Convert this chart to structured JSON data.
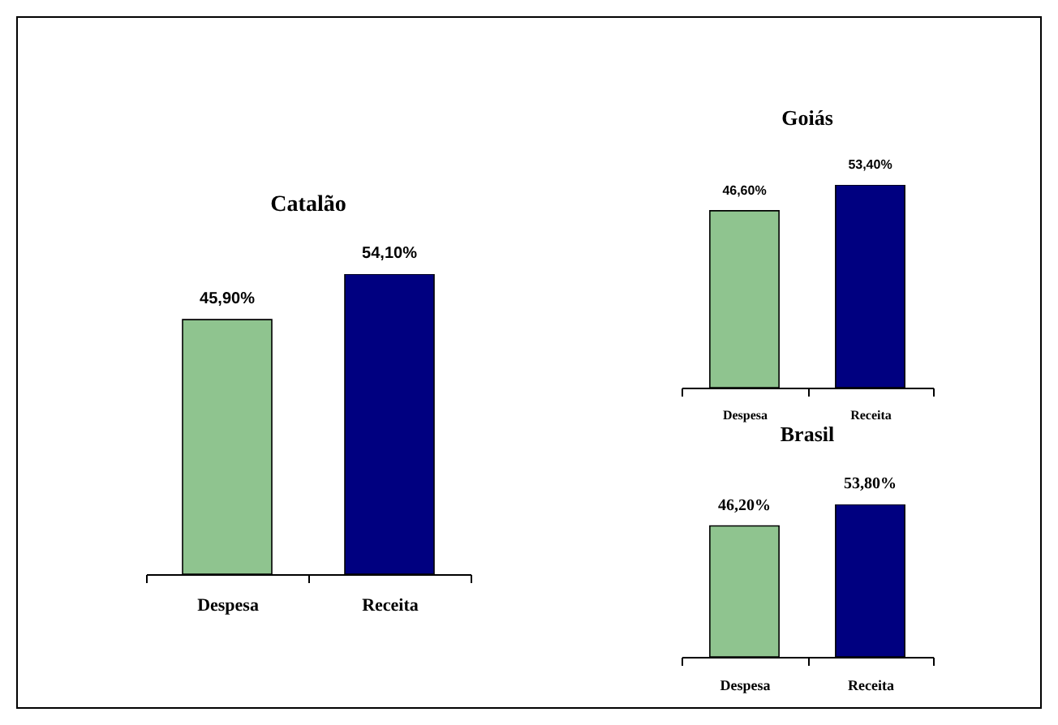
{
  "chart_data": [
    {
      "type": "bar",
      "title": "Catalão",
      "categories": [
        "Despesa",
        "Receita"
      ],
      "values": [
        45.9,
        54.1
      ],
      "value_labels": [
        "45,90%",
        "54,10%"
      ],
      "colors": [
        "#8fc48f",
        "#000080"
      ],
      "tick_labels": "x"
    },
    {
      "type": "bar",
      "title": "Goiás",
      "categories": [
        "Despesa",
        "Receita"
      ],
      "values": [
        46.6,
        53.4
      ],
      "value_labels": [
        "46,60%",
        "53,40%"
      ],
      "colors": [
        "#8fc48f",
        "#000080"
      ],
      "tick_labels": "x"
    },
    {
      "type": "bar",
      "title": "Brasil",
      "categories": [
        "Despesa",
        "Receita"
      ],
      "values": [
        46.2,
        53.8
      ],
      "value_labels": [
        "46,20%",
        "53,80%"
      ],
      "colors": [
        "#8fc48f",
        "#000080"
      ],
      "tick_labels": "x"
    }
  ]
}
